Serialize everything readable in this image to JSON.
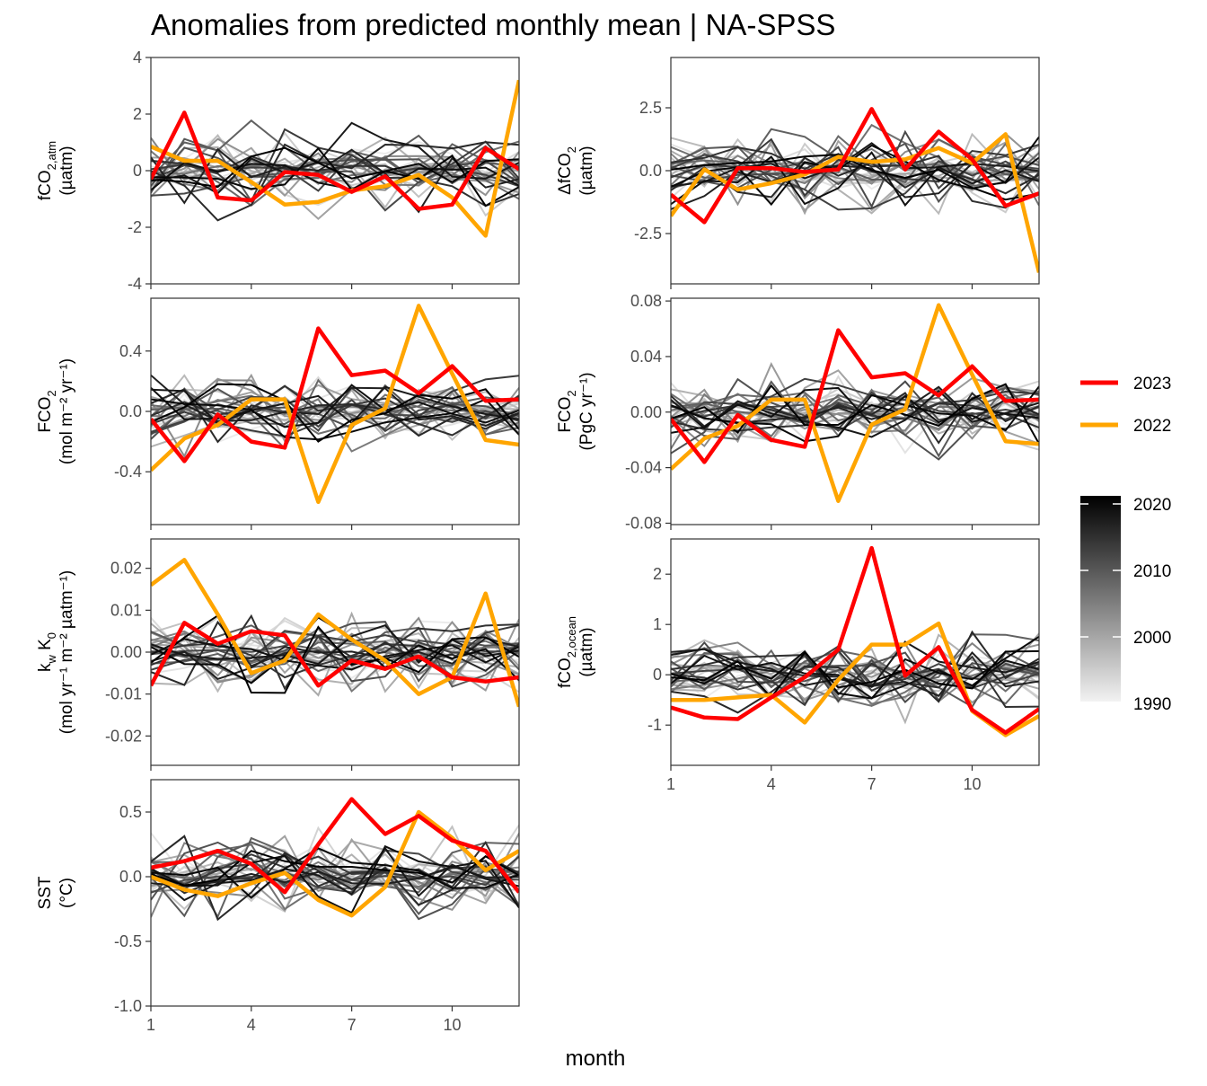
{
  "title": "Anomalies from predicted monthly mean | NA-SPSS",
  "xlabel": "month",
  "colors": {
    "y2023": "#ff0000",
    "y2022": "#ffa500",
    "gray_light": "#ebebeb",
    "gray_dark": "#000000"
  },
  "legend": {
    "series": [
      {
        "label": "2023",
        "color": "#ff0000"
      },
      {
        "label": "2022",
        "color": "#ffa500"
      }
    ],
    "gradient_ticks": [
      "2020",
      "2010",
      "2000",
      "1990"
    ],
    "gradient_range": [
      1990,
      2021
    ]
  },
  "chart_data": [
    {
      "id": "fco2atm",
      "type": "line",
      "ylabel": {
        "main": "fCO",
        "sub": "2,atm",
        "unit": "(µatm)"
      },
      "ylim": [
        -4,
        4
      ],
      "yticks": [
        -4,
        -2,
        0,
        2,
        4
      ],
      "ytick_labels": [
        "-4",
        "-2",
        "0",
        "2",
        "4"
      ],
      "xlim": [
        1,
        12
      ],
      "xticks": [
        1,
        4,
        7,
        10
      ],
      "xtick_labels": [],
      "series": [
        {
          "name": "2023",
          "values": [
            -0.3,
            2.05,
            -0.95,
            -1.05,
            -0.05,
            -0.15,
            -0.75,
            -0.2,
            -1.35,
            -1.2,
            0.8,
            0.05
          ]
        },
        {
          "name": "2022",
          "values": [
            0.85,
            0.35,
            0.35,
            -0.4,
            -1.2,
            -1.1,
            -0.7,
            -0.55,
            -0.15,
            -0.95,
            -2.3,
            3.2
          ]
        }
      ]
    },
    {
      "id": "dfco2",
      "type": "line",
      "ylabel": {
        "main": "ΔfCO",
        "sub": "2",
        "unit": "(µatm)"
      },
      "ylim": [
        -4.5,
        4.5
      ],
      "yticks": [
        -2.5,
        0,
        2.5
      ],
      "ytick_labels": [
        "-2.5",
        "0.0",
        "2.5"
      ],
      "xlim": [
        1,
        12
      ],
      "xticks": [
        1,
        4,
        7,
        10
      ],
      "xtick_labels": [],
      "series": [
        {
          "name": "2023",
          "values": [
            -0.95,
            -2.05,
            0.1,
            0.1,
            -0.05,
            0.05,
            2.45,
            0.05,
            1.55,
            0.45,
            -1.4,
            -0.9
          ]
        },
        {
          "name": "2022",
          "values": [
            -1.8,
            0.05,
            -0.75,
            -0.5,
            -0.15,
            0.55,
            0.35,
            0.45,
            0.9,
            0.3,
            1.45,
            -4.05
          ]
        }
      ]
    },
    {
      "id": "fco2flux_mol",
      "type": "line",
      "ylabel": {
        "main": "FCO",
        "sub": "2",
        "unit": "(mol m⁻² yr⁻¹)"
      },
      "ylim": [
        -0.75,
        0.75
      ],
      "yticks": [
        -0.4,
        0,
        0.4
      ],
      "ytick_labels": [
        "-0.4",
        "0.0",
        "0.4"
      ],
      "xlim": [
        1,
        12
      ],
      "xticks": [
        1,
        4,
        7,
        10
      ],
      "xtick_labels": [],
      "series": [
        {
          "name": "2023",
          "values": [
            -0.05,
            -0.33,
            -0.02,
            -0.2,
            -0.24,
            0.55,
            0.24,
            0.27,
            0.12,
            0.3,
            0.07,
            0.08
          ]
        },
        {
          "name": "2022",
          "values": [
            -0.39,
            -0.18,
            -0.09,
            0.08,
            0.08,
            -0.6,
            -0.09,
            0.02,
            0.7,
            0.25,
            -0.19,
            -0.22
          ]
        }
      ]
    },
    {
      "id": "fco2flux_pgc",
      "type": "line",
      "ylabel": {
        "main": "FCO",
        "sub": "2",
        "unit": "(PgC yr⁻¹)"
      },
      "ylim": [
        -0.081,
        0.082
      ],
      "yticks": [
        -0.08,
        -0.04,
        0,
        0.04,
        0.08
      ],
      "ytick_labels": [
        "-0.08",
        "-0.04",
        "0.00",
        "0.04",
        "0.08"
      ],
      "xlim": [
        1,
        12
      ],
      "xticks": [
        1,
        4,
        7,
        10
      ],
      "xtick_labels": [],
      "series": [
        {
          "name": "2023",
          "values": [
            -0.005,
            -0.036,
            -0.002,
            -0.02,
            -0.025,
            0.059,
            0.025,
            0.028,
            0.012,
            0.033,
            0.008,
            0.009
          ]
        },
        {
          "name": "2022",
          "values": [
            -0.041,
            -0.019,
            -0.01,
            0.009,
            0.009,
            -0.064,
            -0.009,
            0.002,
            0.077,
            0.027,
            -0.021,
            -0.023
          ]
        }
      ]
    },
    {
      "id": "kwk0",
      "type": "line",
      "ylabel": {
        "main": "k",
        "sub": "w",
        "main2": " K",
        "sub2": "0",
        "unit": "(mol yr⁻¹ m⁻² µatm⁻¹)"
      },
      "ylim": [
        -0.027,
        0.027
      ],
      "yticks": [
        -0.02,
        -0.01,
        0,
        0.01,
        0.02
      ],
      "ytick_labels": [
        "-0.02",
        "-0.01",
        "0.00",
        "0.01",
        "0.02"
      ],
      "xlim": [
        1,
        12
      ],
      "xticks": [
        1,
        4,
        7,
        10
      ],
      "xtick_labels": [],
      "series": [
        {
          "name": "2023",
          "values": [
            -0.008,
            0.007,
            0.002,
            0.005,
            0.004,
            -0.008,
            -0.002,
            -0.004,
            -0.001,
            -0.006,
            -0.007,
            -0.006
          ]
        },
        {
          "name": "2022",
          "values": [
            0.016,
            0.022,
            0.009,
            -0.005,
            -0.002,
            0.009,
            0.003,
            -0.002,
            -0.01,
            -0.006,
            0.014,
            -0.013
          ]
        }
      ]
    },
    {
      "id": "fco2ocean",
      "type": "line",
      "ylabel": {
        "main": "fCO",
        "sub": "2,ocean",
        "unit": "(µatm)"
      },
      "ylim": [
        -1.8,
        2.7
      ],
      "yticks": [
        -1,
        0,
        1,
        2
      ],
      "ytick_labels": [
        "-1",
        "0",
        "1",
        "2"
      ],
      "xlim": [
        1,
        12
      ],
      "xticks": [
        1,
        4,
        7,
        10
      ],
      "xtick_labels": [
        "1",
        "4",
        "7",
        "10"
      ],
      "series": [
        {
          "name": "2023",
          "values": [
            -0.65,
            -0.85,
            -0.88,
            -0.45,
            -0.05,
            0.5,
            2.52,
            -0.02,
            0.55,
            -0.7,
            -1.15,
            -0.68
          ]
        },
        {
          "name": "2022",
          "values": [
            -0.5,
            -0.5,
            -0.45,
            -0.4,
            -0.95,
            -0.1,
            0.6,
            0.6,
            1.02,
            -0.72,
            -1.2,
            -0.82
          ]
        }
      ]
    },
    {
      "id": "sst",
      "type": "line",
      "ylabel": {
        "main": "SST",
        "sub": "",
        "unit": "(°C)"
      },
      "ylim": [
        -1.0,
        0.75
      ],
      "yticks": [
        -1,
        -0.5,
        0,
        0.5
      ],
      "ytick_labels": [
        "-1.0",
        "-0.5",
        "0.0",
        "0.5"
      ],
      "xlim": [
        1,
        12
      ],
      "xticks": [
        1,
        4,
        7,
        10
      ],
      "xtick_labels": [
        "1",
        "4",
        "7",
        "10"
      ],
      "series": [
        {
          "name": "2023",
          "values": [
            0.07,
            0.12,
            0.2,
            0.1,
            -0.12,
            0.25,
            0.6,
            0.33,
            0.47,
            0.28,
            0.2,
            -0.12
          ]
        },
        {
          "name": "2022",
          "values": [
            0.0,
            -0.1,
            -0.15,
            -0.05,
            0.03,
            -0.18,
            -0.3,
            -0.08,
            0.5,
            0.3,
            0.05,
            0.2
          ]
        }
      ]
    }
  ]
}
